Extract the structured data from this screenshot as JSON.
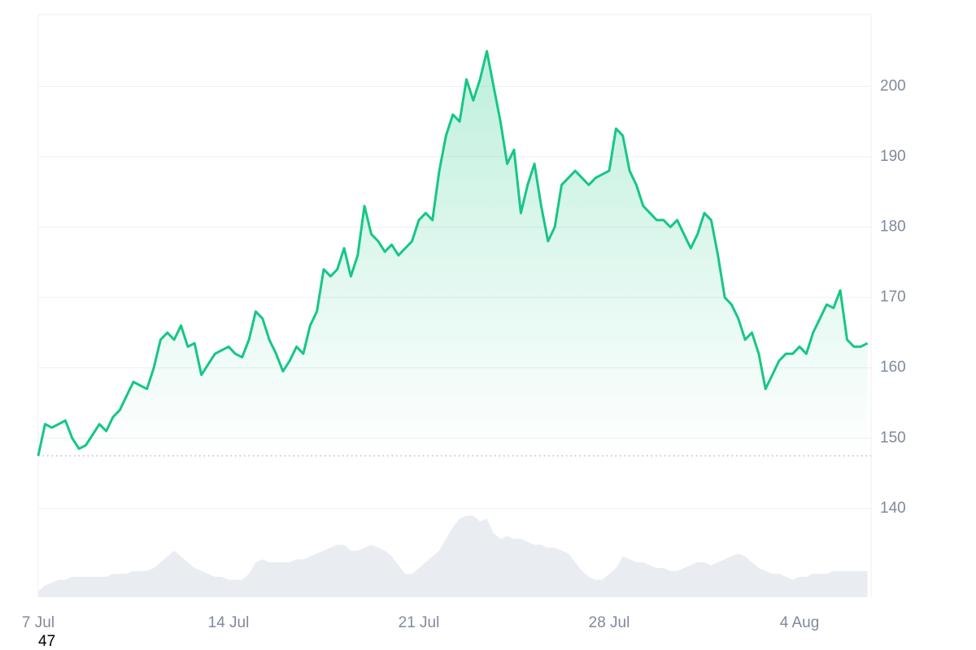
{
  "chart_data": {
    "type": "line",
    "categories": [
      "7 Jul",
      null,
      null,
      null,
      null,
      null,
      null,
      null,
      null,
      null,
      null,
      null,
      null,
      null,
      null,
      null,
      null,
      null,
      null,
      null,
      null,
      null,
      null,
      null,
      null,
      null,
      null,
      null,
      "14 Jul",
      null,
      null,
      null,
      null,
      null,
      null,
      null,
      null,
      null,
      null,
      null,
      null,
      null,
      null,
      null,
      null,
      null,
      null,
      null,
      null,
      null,
      null,
      null,
      null,
      null,
      null,
      null,
      "21 Jul",
      null,
      null,
      null,
      null,
      null,
      null,
      null,
      null,
      null,
      null,
      null,
      null,
      null,
      null,
      null,
      null,
      null,
      null,
      null,
      null,
      null,
      null,
      null,
      null,
      null,
      null,
      null,
      "28 Jul",
      null,
      null,
      null,
      null,
      null,
      null,
      null,
      null,
      null,
      null,
      null,
      null,
      null,
      null,
      null,
      null,
      null,
      null,
      null,
      null,
      null,
      null,
      null,
      null,
      null,
      null,
      null,
      "4 Aug",
      null,
      null,
      null,
      null,
      null,
      null,
      null,
      null,
      null,
      null
    ],
    "series": [
      {
        "color": "#16c784",
        "values": [
          147.5,
          152,
          151.5,
          152,
          152.5,
          150,
          148.5,
          149,
          150.5,
          152,
          151,
          153,
          154,
          156,
          158,
          157.5,
          157,
          160,
          164,
          165,
          164,
          166,
          163,
          163.5,
          159,
          160.5,
          162,
          162.5,
          163,
          162,
          161.5,
          164,
          168,
          167,
          164,
          162,
          159.5,
          161,
          163,
          162,
          166,
          168,
          174,
          173,
          174,
          177,
          173,
          176,
          183,
          179,
          178,
          176.5,
          177.5,
          176,
          177,
          178,
          181,
          182,
          181,
          188,
          193,
          196,
          195,
          201,
          198,
          201,
          205,
          200,
          195,
          189,
          191,
          182,
          186,
          189,
          183,
          178,
          180,
          186,
          187,
          188,
          187,
          186,
          187,
          187.5,
          188,
          194,
          193,
          188,
          186,
          183,
          182,
          181,
          181,
          180,
          181,
          179,
          177,
          179,
          182,
          181,
          176,
          170,
          169,
          167,
          164,
          165,
          162,
          157,
          159,
          161,
          162,
          162,
          163,
          162,
          165,
          167,
          169,
          168.5,
          171,
          164,
          163,
          163,
          163.5
        ]
      }
    ],
    "volume": [
      1,
      2,
      2.5,
      3,
      3,
      3.5,
      3.5,
      3.5,
      3.5,
      3.5,
      3.5,
      4,
      4,
      4,
      4.5,
      4.5,
      4.5,
      5,
      6,
      7,
      8,
      7,
      6,
      5,
      4.5,
      4,
      3.5,
      3.5,
      3,
      3,
      3,
      4,
      6,
      6.5,
      6,
      6,
      6,
      6,
      6.5,
      6.5,
      7,
      7.5,
      8,
      8.5,
      9,
      9,
      8,
      8,
      8.5,
      9,
      8.5,
      8,
      7,
      5.5,
      4,
      4,
      5,
      6,
      7,
      8,
      10,
      12,
      13.5,
      14,
      14,
      13,
      13.5,
      11,
      10,
      10.5,
      10,
      10,
      9.5,
      9,
      9,
      8.5,
      8.5,
      8,
      7.5,
      6,
      4.5,
      3.5,
      3,
      3,
      4,
      5,
      7,
      6.5,
      6,
      6,
      5.5,
      5,
      5,
      4.5,
      4.5,
      5,
      5.5,
      6,
      6,
      5.5,
      6,
      6.5,
      7,
      7.5,
      7,
      6,
      5,
      4.5,
      4,
      4,
      3.5,
      3,
      3.5,
      3.5,
      4,
      4,
      4,
      4.5,
      4.5,
      4.5,
      4.5,
      4.5,
      4.5
    ],
    "volume_color": "#e9edf1",
    "y2lim": [
      0,
      100
    ],
    "baseline": 147.5,
    "ylim": [
      127.4,
      210.2
    ],
    "yticks": [
      140,
      150,
      160,
      170,
      180,
      190,
      200
    ],
    "grid": true,
    "annotation": "47"
  }
}
